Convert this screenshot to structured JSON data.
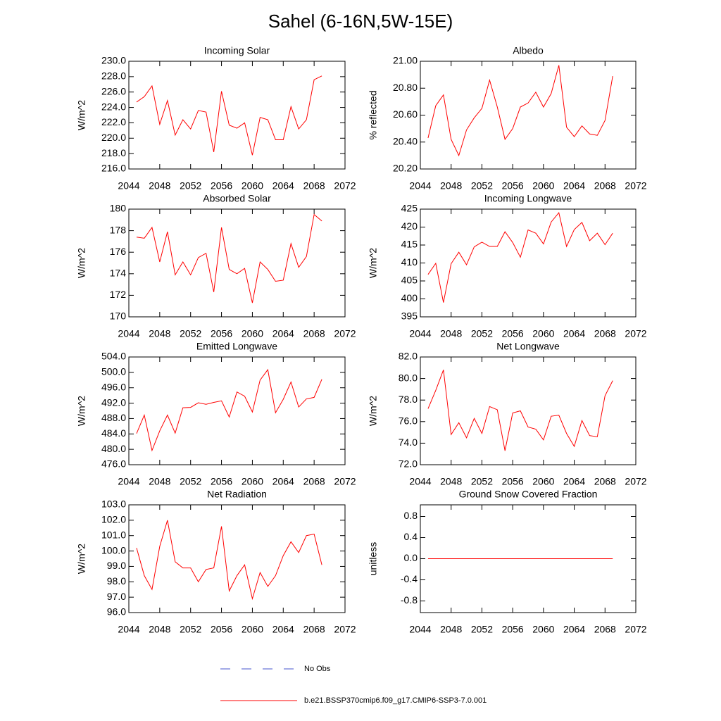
{
  "title": "Sahel (6-16N,5W-15E)",
  "legend": [
    {
      "name": "No Obs",
      "color": "#4455cc",
      "dash": true
    },
    {
      "name": "b.e21.BSSP370cmip6.f09_g17.CMIP6-SSP3-7.0.001",
      "color": "#ff0000",
      "dash": false
    }
  ],
  "chart_data": [
    {
      "type": "line",
      "title": "Incoming Solar",
      "ylabel": "W/m^2",
      "x": [
        2045,
        2046,
        2047,
        2048,
        2049,
        2050,
        2051,
        2052,
        2053,
        2054,
        2055,
        2056,
        2057,
        2058,
        2059,
        2060,
        2061,
        2062,
        2063,
        2064,
        2065,
        2066,
        2067,
        2068,
        2069
      ],
      "series": [
        {
          "color": "#ff0000",
          "values": [
            224.7,
            225.4,
            226.8,
            221.8,
            224.9,
            220.4,
            222.4,
            221.2,
            223.6,
            223.4,
            218.2,
            226.1,
            221.7,
            221.3,
            222.0,
            217.8,
            222.7,
            222.4,
            219.8,
            219.8,
            224.1,
            221.2,
            222.4,
            227.6,
            228.1
          ]
        }
      ],
      "xlim": [
        2044,
        2072
      ],
      "xticks": [
        2044,
        2048,
        2052,
        2056,
        2060,
        2064,
        2068,
        2072
      ],
      "ylim": [
        216,
        230
      ],
      "yticks": [
        {
          "value": 216,
          "label": "216.0"
        },
        {
          "value": 218,
          "label": "218.0"
        },
        {
          "value": 220,
          "label": "220.0"
        },
        {
          "value": 222,
          "label": "222.0"
        },
        {
          "value": 224,
          "label": "224.0"
        },
        {
          "value": 226,
          "label": "226.0"
        },
        {
          "value": 228,
          "label": "228.0"
        },
        {
          "value": 230,
          "label": "230.0"
        }
      ]
    },
    {
      "type": "line",
      "title": "Albedo",
      "ylabel": "% reflected",
      "x": [
        2045,
        2046,
        2047,
        2048,
        2049,
        2050,
        2051,
        2052,
        2053,
        2054,
        2055,
        2056,
        2057,
        2058,
        2059,
        2060,
        2061,
        2062,
        2063,
        2064,
        2065,
        2066,
        2067,
        2068,
        2069
      ],
      "series": [
        {
          "color": "#ff0000",
          "values": [
            20.43,
            20.67,
            20.75,
            20.42,
            20.3,
            20.49,
            20.58,
            20.65,
            20.86,
            20.66,
            20.42,
            20.5,
            20.66,
            20.69,
            20.77,
            20.66,
            20.76,
            20.97,
            20.51,
            20.44,
            20.52,
            20.46,
            20.45,
            20.56,
            20.89
          ]
        }
      ],
      "xlim": [
        2044,
        2072
      ],
      "xticks": [
        2044,
        2048,
        2052,
        2056,
        2060,
        2064,
        2068,
        2072
      ],
      "ylim": [
        20.2,
        21.0
      ],
      "yticks": [
        {
          "value": 20.2,
          "label": "20.20"
        },
        {
          "value": 20.4,
          "label": "20.40"
        },
        {
          "value": 20.6,
          "label": "20.60"
        },
        {
          "value": 20.8,
          "label": "20.80"
        },
        {
          "value": 21.0,
          "label": "21.00"
        }
      ]
    },
    {
      "type": "line",
      "title": "Absorbed Solar",
      "ylabel": "W/m^2",
      "x": [
        2045,
        2046,
        2047,
        2048,
        2049,
        2050,
        2051,
        2052,
        2053,
        2054,
        2055,
        2056,
        2057,
        2058,
        2059,
        2060,
        2061,
        2062,
        2063,
        2064,
        2065,
        2066,
        2067,
        2068,
        2069
      ],
      "series": [
        {
          "color": "#ff0000",
          "values": [
            177.4,
            177.3,
            178.3,
            175.1,
            177.9,
            173.9,
            175.1,
            173.9,
            175.5,
            175.9,
            172.3,
            178.3,
            174.4,
            174.0,
            174.5,
            171.3,
            175.1,
            174.4,
            173.3,
            173.4,
            176.8,
            174.6,
            175.6,
            179.5,
            178.9
          ]
        }
      ],
      "xlim": [
        2044,
        2072
      ],
      "xticks": [
        2044,
        2048,
        2052,
        2056,
        2060,
        2064,
        2068,
        2072
      ],
      "ylim": [
        170,
        180
      ],
      "yticks": [
        170,
        172,
        174,
        176,
        178,
        180
      ]
    },
    {
      "type": "line",
      "title": "Incoming Longwave",
      "ylabel": "W/m^2",
      "x": [
        2045,
        2046,
        2047,
        2048,
        2049,
        2050,
        2051,
        2052,
        2053,
        2054,
        2055,
        2056,
        2057,
        2058,
        2059,
        2060,
        2061,
        2062,
        2063,
        2064,
        2065,
        2066,
        2067,
        2068,
        2069
      ],
      "series": [
        {
          "color": "#ff0000",
          "values": [
            406.8,
            409.9,
            399.0,
            409.8,
            413.0,
            409.5,
            414.5,
            415.8,
            414.6,
            414.6,
            418.7,
            415.7,
            411.6,
            419.2,
            418.3,
            415.3,
            421.4,
            424.0,
            414.6,
            419.3,
            421.3,
            416.2,
            418.3,
            415.1,
            418.3
          ]
        }
      ],
      "xlim": [
        2044,
        2072
      ],
      "xticks": [
        2044,
        2048,
        2052,
        2056,
        2060,
        2064,
        2068,
        2072
      ],
      "ylim": [
        395,
        425
      ],
      "yticks": [
        395,
        400,
        405,
        410,
        415,
        420,
        425
      ]
    },
    {
      "type": "line",
      "title": "Emitted Longwave",
      "ylabel": "W/m^2",
      "x": [
        2045,
        2046,
        2047,
        2048,
        2049,
        2050,
        2051,
        2052,
        2053,
        2054,
        2055,
        2056,
        2057,
        2058,
        2059,
        2060,
        2061,
        2062,
        2063,
        2064,
        2065,
        2066,
        2067,
        2068,
        2069
      ],
      "series": [
        {
          "color": "#ff0000",
          "values": [
            484.1,
            488.9,
            479.7,
            484.8,
            488.9,
            484.2,
            490.8,
            490.9,
            492.1,
            491.7,
            492.2,
            492.6,
            488.4,
            494.9,
            493.8,
            489.7,
            498.0,
            500.7,
            489.5,
            493.0,
            497.5,
            491.0,
            493.1,
            493.5,
            498.2
          ]
        }
      ],
      "xlim": [
        2044,
        2072
      ],
      "xticks": [
        2044,
        2048,
        2052,
        2056,
        2060,
        2064,
        2068,
        2072
      ],
      "ylim": [
        476,
        504
      ],
      "yticks": [
        {
          "value": 476,
          "label": "476.0"
        },
        {
          "value": 480,
          "label": "480.0"
        },
        {
          "value": 484,
          "label": "484.0"
        },
        {
          "value": 488,
          "label": "488.0"
        },
        {
          "value": 492,
          "label": "492.0"
        },
        {
          "value": 496,
          "label": "496.0"
        },
        {
          "value": 500,
          "label": "500.0"
        },
        {
          "value": 504,
          "label": "504.0"
        }
      ]
    },
    {
      "type": "line",
      "title": "Net Longwave",
      "ylabel": "W/m^2",
      "x": [
        2045,
        2046,
        2047,
        2048,
        2049,
        2050,
        2051,
        2052,
        2053,
        2054,
        2055,
        2056,
        2057,
        2058,
        2059,
        2060,
        2061,
        2062,
        2063,
        2064,
        2065,
        2066,
        2067,
        2068,
        2069
      ],
      "series": [
        {
          "color": "#ff0000",
          "values": [
            77.2,
            78.9,
            80.8,
            74.8,
            75.9,
            74.5,
            76.3,
            74.9,
            77.4,
            77.1,
            73.3,
            76.8,
            77.0,
            75.5,
            75.3,
            74.3,
            76.5,
            76.6,
            74.9,
            73.7,
            76.1,
            74.7,
            74.6,
            78.4,
            79.8
          ]
        }
      ],
      "xlim": [
        2044,
        2072
      ],
      "xticks": [
        2044,
        2048,
        2052,
        2056,
        2060,
        2064,
        2068,
        2072
      ],
      "ylim": [
        72,
        82
      ],
      "yticks": [
        {
          "value": 72,
          "label": "72.0"
        },
        {
          "value": 74,
          "label": "74.0"
        },
        {
          "value": 76,
          "label": "76.0"
        },
        {
          "value": 78,
          "label": "78.0"
        },
        {
          "value": 80,
          "label": "80.0"
        },
        {
          "value": 82,
          "label": "82.0"
        }
      ]
    },
    {
      "type": "line",
      "title": "Net Radiation",
      "ylabel": "W/m^2",
      "x": [
        2045,
        2046,
        2047,
        2048,
        2049,
        2050,
        2051,
        2052,
        2053,
        2054,
        2055,
        2056,
        2057,
        2058,
        2059,
        2060,
        2061,
        2062,
        2063,
        2064,
        2065,
        2066,
        2067,
        2068,
        2069
      ],
      "series": [
        {
          "color": "#ff0000",
          "values": [
            100.2,
            98.4,
            97.5,
            100.3,
            102.0,
            99.3,
            98.9,
            98.9,
            98.0,
            98.8,
            98.9,
            101.6,
            97.4,
            98.4,
            99.1,
            96.9,
            98.6,
            97.7,
            98.4,
            99.7,
            100.6,
            99.9,
            101.0,
            101.1,
            99.1
          ]
        }
      ],
      "xlim": [
        2044,
        2072
      ],
      "xticks": [
        2044,
        2048,
        2052,
        2056,
        2060,
        2064,
        2068,
        2072
      ],
      "ylim": [
        96,
        103
      ],
      "yticks": [
        {
          "value": 96,
          "label": "96.0"
        },
        {
          "value": 97,
          "label": "97.0"
        },
        {
          "value": 98,
          "label": "98.0"
        },
        {
          "value": 99,
          "label": "99.0"
        },
        {
          "value": 100,
          "label": "100.0"
        },
        {
          "value": 101,
          "label": "101.0"
        },
        {
          "value": 102,
          "label": "102.0"
        },
        {
          "value": 103,
          "label": "103.0"
        }
      ]
    },
    {
      "type": "line",
      "title": "Ground Snow Covered Fraction",
      "ylabel": "unitless",
      "x": [
        2045,
        2046,
        2047,
        2048,
        2049,
        2050,
        2051,
        2052,
        2053,
        2054,
        2055,
        2056,
        2057,
        2058,
        2059,
        2060,
        2061,
        2062,
        2063,
        2064,
        2065,
        2066,
        2067,
        2068,
        2069
      ],
      "series": [
        {
          "color": "#ff0000",
          "values": [
            0,
            0,
            0,
            0,
            0,
            0,
            0,
            0,
            0,
            0,
            0,
            0,
            0,
            0,
            0,
            0,
            0,
            0,
            0,
            0,
            0,
            0,
            0,
            0,
            0
          ]
        }
      ],
      "xlim": [
        2044,
        2072
      ],
      "xticks": [
        2044,
        2048,
        2052,
        2056,
        2060,
        2064,
        2068,
        2072
      ],
      "ylim": [
        -1.02,
        1.02
      ],
      "yticks": [
        -0.8,
        -0.4,
        {
          "value": 0,
          "label": "0.0"
        },
        0.4,
        0.8
      ]
    }
  ]
}
